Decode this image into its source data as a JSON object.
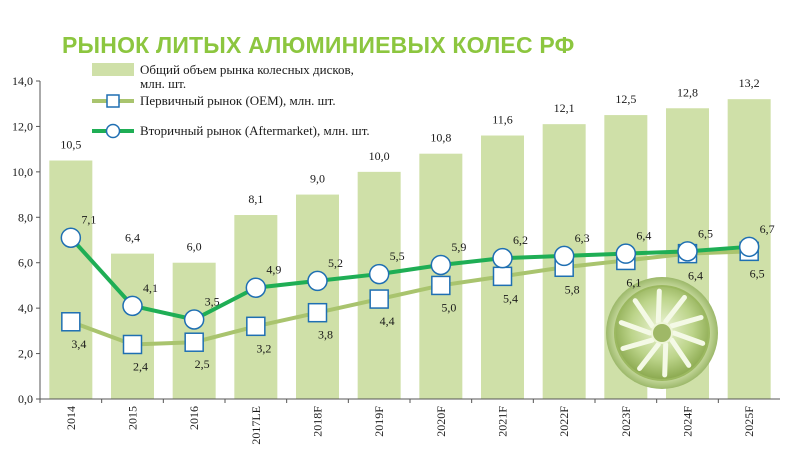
{
  "chart_data": {
    "type": "bar",
    "title": "РЫНОК ЛИТЫХ АЛЮМИНИЕВЫХ КОЛЕС РФ",
    "xlabel": "",
    "ylabel": "",
    "ylim": [
      0,
      14
    ],
    "yticks": [
      "0,0",
      "2,0",
      "4,0",
      "6,0",
      "8,0",
      "10,0",
      "12,0",
      "14,0"
    ],
    "categories": [
      "2014",
      "2015",
      "2016",
      "2017LE",
      "2018F",
      "2019F",
      "2020F",
      "2021F",
      "2022F",
      "2023F",
      "2024F",
      "2025F"
    ],
    "grid": false,
    "legend_position": "top-left",
    "series": [
      {
        "name": "Общий объем рынка колесных дисков, млн. шт.",
        "legend_lines": [
          "Общий объем рынка колесных дисков,",
          "млн. шт."
        ],
        "kind": "bar",
        "color": "#cfe0a8",
        "values": [
          10.5,
          6.4,
          6.0,
          8.1,
          9.0,
          10.0,
          10.8,
          11.6,
          12.1,
          12.5,
          12.8,
          13.2
        ],
        "labels": [
          "10,5",
          "6,4",
          "6,0",
          "8,1",
          "9,0",
          "10,0",
          "10,8",
          "11,6",
          "12,1",
          "12,5",
          "12,8",
          "13,2"
        ]
      },
      {
        "name": "Первичный рынок (OEM), млн. шт.",
        "kind": "line-square",
        "color": "#a9c46e",
        "marker_edge": "#1f6fb2",
        "values": [
          3.4,
          2.4,
          2.5,
          3.2,
          3.8,
          4.4,
          5.0,
          5.4,
          5.8,
          6.1,
          6.4,
          6.5
        ],
        "labels": [
          "3,4",
          "2,4",
          "2,5",
          "3,2",
          "3,8",
          "4,4",
          "5,0",
          "5,4",
          "5,8",
          "6,1",
          "6,4",
          "6,5"
        ]
      },
      {
        "name": "Вторичный рынок (Aftermarket), млн. шт.",
        "kind": "line-circle",
        "color": "#1fae55",
        "marker_edge": "#1f6fb2",
        "values": [
          7.1,
          4.1,
          3.5,
          4.9,
          5.2,
          5.5,
          5.9,
          6.2,
          6.3,
          6.4,
          6.5,
          6.7
        ],
        "labels": [
          "7,1",
          "4,1",
          "3,5",
          "4,9",
          "5,2",
          "5,5",
          "5,9",
          "6,2",
          "6,3",
          "6,4",
          "6,5",
          "6,7"
        ]
      }
    ]
  },
  "decor": {
    "wheel_image": "alloy-wheel-image",
    "accent_color": "#8cc63f"
  }
}
